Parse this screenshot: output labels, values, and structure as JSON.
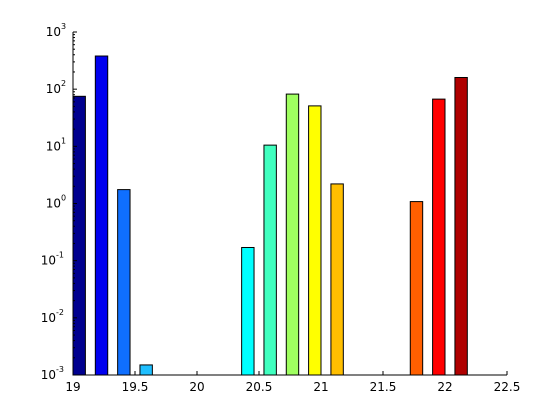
{
  "chart_data": {
    "type": "bar",
    "title": "",
    "xlabel": "",
    "ylabel": "",
    "xlim": [
      19,
      22.5
    ],
    "ylim": [
      0.001,
      1000
    ],
    "yscale": "log",
    "grid": false,
    "x_ticks": [
      "19",
      "19.5",
      "20",
      "20.5",
      "21",
      "21.5",
      "22",
      "22.5"
    ],
    "y_ticks": [
      {
        "base": "10",
        "exp": "-3"
      },
      {
        "base": "10",
        "exp": "-2"
      },
      {
        "base": "10",
        "exp": "-1"
      },
      {
        "base": "10",
        "exp": "0"
      },
      {
        "base": "10",
        "exp": "1"
      },
      {
        "base": "10",
        "exp": "2"
      },
      {
        "base": "10",
        "exp": "3"
      }
    ],
    "bars": [
      {
        "x": 19.05,
        "value": 75,
        "color": "#00008f"
      },
      {
        "x": 19.23,
        "value": 380,
        "color": "#0000ef"
      },
      {
        "x": 19.41,
        "value": 1.75,
        "color": "#0f6fff"
      },
      {
        "x": 19.59,
        "value": 0.0015,
        "color": "#1fbfff"
      },
      {
        "x": 20.41,
        "value": 0.17,
        "color": "#00ffff"
      },
      {
        "x": 20.59,
        "value": 10.5,
        "color": "#40ffbf"
      },
      {
        "x": 20.77,
        "value": 82,
        "color": "#9fff60"
      },
      {
        "x": 20.95,
        "value": 51,
        "color": "#ffff00"
      },
      {
        "x": 21.13,
        "value": 2.2,
        "color": "#ffbf00"
      },
      {
        "x": 21.77,
        "value": 1.08,
        "color": "#ff5f00"
      },
      {
        "x": 21.95,
        "value": 67,
        "color": "#ff0000"
      },
      {
        "x": 22.13,
        "value": 160,
        "color": "#af0000"
      }
    ],
    "bar_width": 0.1
  }
}
